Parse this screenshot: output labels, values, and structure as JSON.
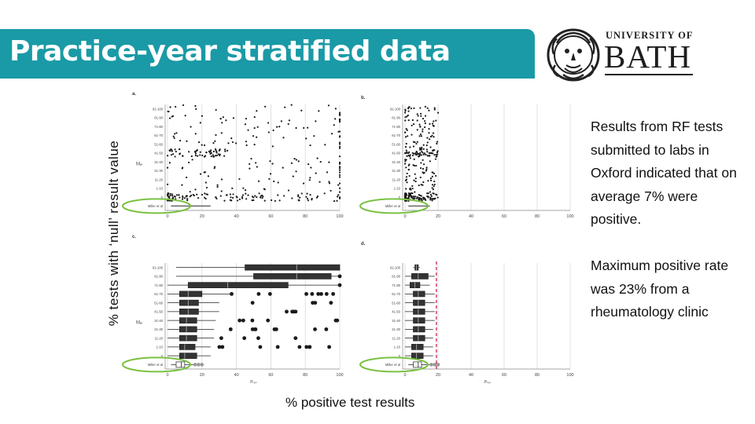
{
  "slide": {
    "title": "Practice-year stratified data",
    "logo": {
      "top": "UNIVERSITY OF",
      "main": "BATH"
    },
    "y_axis_label": "% tests with ‘null’ result value",
    "x_axis_label": "% positive test results",
    "text_paragraphs": [
      "Results from RF tests submitted to labs in Oxford indicated that on average 7% were positive.",
      "Maximum positive rate was 23% from a rheumatology clinic"
    ]
  },
  "colors": {
    "title_bar": "#1a9aa6",
    "highlight": "#7ac142",
    "dashed_line": "#c0143c",
    "points": "#1a1a1a"
  },
  "chart_data": [
    {
      "panel_label": "a.",
      "type": "scatter",
      "ylabel": "Mₑₗ",
      "categories": [
        "Miller et al",
        "0",
        "1-10",
        "11-20",
        "21-30",
        "31-40",
        "41-50",
        "51-60",
        "61-70",
        "71-80",
        "81-90",
        "91-100"
      ],
      "x_ticks": [
        "0",
        "20",
        "40",
        "60",
        "80",
        "100"
      ],
      "xlim": [
        0,
        100
      ]
    },
    {
      "panel_label": "b.",
      "type": "scatter",
      "ylabel": "",
      "categories": [
        "Miller et al",
        "0",
        "1-10",
        "11-20",
        "21-30",
        "31-40",
        "41-50",
        "51-60",
        "61-70",
        "71-80",
        "81-90",
        "91-100"
      ],
      "x_ticks": [
        "0",
        "20",
        "40",
        "60",
        "80",
        "100"
      ],
      "xlim": [
        0,
        100
      ]
    },
    {
      "panel_label": "c.",
      "type": "boxplot",
      "ylabel": "Mₑₗ",
      "xlabel": "Pₜₑₛ",
      "categories": [
        "Miller et al",
        "0",
        "1-10",
        "11-20",
        "21-30",
        "31-40",
        "41-50",
        "51-60",
        "61-70",
        "71-80",
        "81-90",
        "91-100"
      ],
      "x_ticks": [
        "0",
        "20",
        "40",
        "60",
        "80",
        "100"
      ],
      "xlim": [
        0,
        100
      ],
      "boxes": [
        {
          "min": 2,
          "q1": 5,
          "median": 8,
          "q3": 10,
          "max": 15
        },
        {
          "min": 0,
          "q1": 7,
          "median": 10,
          "q3": 17,
          "max": 25
        },
        {
          "min": 0,
          "q1": 7,
          "median": 10,
          "q3": 16,
          "max": 25
        },
        {
          "min": 0,
          "q1": 7,
          "median": 11,
          "q3": 17,
          "max": 27
        },
        {
          "min": 0,
          "q1": 7,
          "median": 11,
          "q3": 17,
          "max": 27
        },
        {
          "min": 0,
          "q1": 7,
          "median": 11,
          "q3": 17,
          "max": 28
        },
        {
          "min": 0,
          "q1": 7,
          "median": 12,
          "q3": 18,
          "max": 30
        },
        {
          "min": 0,
          "q1": 7,
          "median": 12,
          "q3": 18,
          "max": 30
        },
        {
          "min": 0,
          "q1": 7,
          "median": 12,
          "q3": 20,
          "max": 38
        },
        {
          "min": 0,
          "q1": 12,
          "median": 35,
          "q3": 70,
          "max": 100
        },
        {
          "min": 5,
          "q1": 50,
          "median": 75,
          "q3": 95,
          "max": 100
        },
        {
          "min": 5,
          "q1": 45,
          "median": 75,
          "q3": 100,
          "max": 100
        }
      ]
    },
    {
      "panel_label": "d.",
      "type": "boxplot",
      "ylabel": "",
      "xlabel": "Pₜₑₛ",
      "categories": [
        "Miller et al",
        "0",
        "1-10",
        "11-20",
        "21-30",
        "31-40",
        "41-50",
        "51-60",
        "61-70",
        "71-80",
        "81-90",
        "91-100"
      ],
      "x_ticks": [
        "0",
        "20",
        "40",
        "60",
        "80",
        "100"
      ],
      "xlim": [
        0,
        100
      ],
      "reference_line": 19,
      "boxes": [
        {
          "min": 2,
          "q1": 5,
          "median": 8,
          "q3": 10,
          "max": 15
        },
        {
          "min": 0,
          "q1": 4,
          "median": 7,
          "q3": 11,
          "max": 17
        },
        {
          "min": 0,
          "q1": 4,
          "median": 7,
          "q3": 11,
          "max": 17
        },
        {
          "min": 0,
          "q1": 5,
          "median": 8,
          "q3": 12,
          "max": 17
        },
        {
          "min": 0,
          "q1": 5,
          "median": 8,
          "q3": 12,
          "max": 17
        },
        {
          "min": 0,
          "q1": 5,
          "median": 8,
          "q3": 12,
          "max": 18
        },
        {
          "min": 0,
          "q1": 5,
          "median": 8,
          "q3": 12,
          "max": 18
        },
        {
          "min": 0,
          "q1": 5,
          "median": 8,
          "q3": 12,
          "max": 18
        },
        {
          "min": 0,
          "q1": 5,
          "median": 8,
          "q3": 12,
          "max": 18
        },
        {
          "min": 0,
          "q1": 3,
          "median": 6,
          "q3": 9,
          "max": 15
        },
        {
          "min": 0,
          "q1": 4,
          "median": 8,
          "q3": 14,
          "max": 18
        },
        {
          "min": 5,
          "q1": 6,
          "median": 7,
          "q3": 8,
          "max": 9
        }
      ]
    }
  ]
}
